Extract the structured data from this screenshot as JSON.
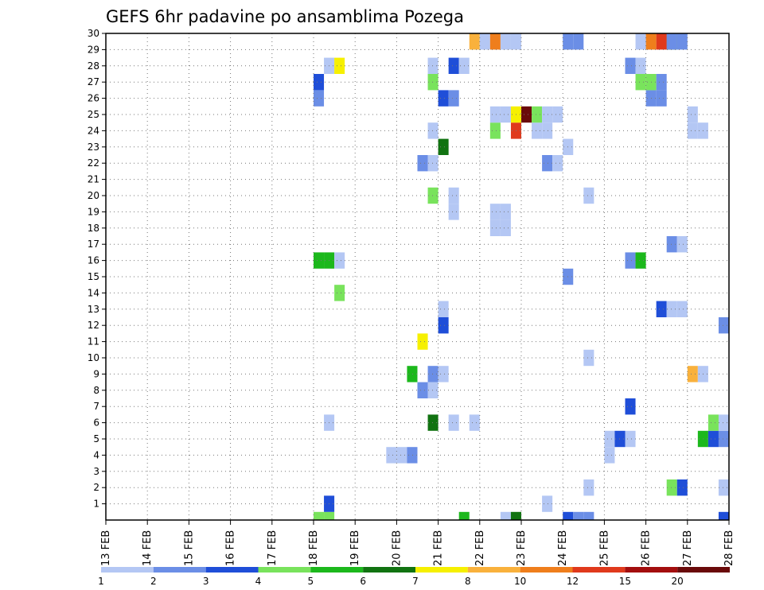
{
  "chart_data": {
    "type": "heatmap",
    "title": "GEFS 6hr padavine po ansamblima Pozega",
    "xlabel": "",
    "ylabel": "",
    "x_ticks": [
      "13 FEB",
      "14 FEB",
      "15 FEB",
      "16 FEB",
      "17 FEB",
      "18 FEB",
      "19 FEB",
      "20 FEB",
      "21 FEB",
      "22 FEB",
      "23 FEB",
      "24 FEB",
      "25 FEB",
      "26 FEB",
      "27 FEB",
      "28 FEB"
    ],
    "y_ticks": [
      "1",
      "2",
      "3",
      "4",
      "5",
      "6",
      "7",
      "8",
      "9",
      "10",
      "11",
      "12",
      "13",
      "14",
      "15",
      "16",
      "17",
      "18",
      "19",
      "20",
      "21",
      "22",
      "23",
      "24",
      "25",
      "26",
      "27",
      "28",
      "29",
      "30"
    ],
    "grid": true,
    "colorbar": {
      "colors": [
        "#b4c7f4",
        "#6b8ee6",
        "#1f4ed8",
        "#79e35c",
        "#1cb81c",
        "#117311",
        "#f6f000",
        "#f9b13c",
        "#ef7e1c",
        "#e0391c",
        "#a30e0e",
        "#6a0a0a"
      ],
      "labels": [
        "1",
        "2",
        "3",
        "4",
        "5",
        "6",
        "7",
        "8",
        "10",
        "12",
        "15",
        "20"
      ]
    },
    "cells": [
      {
        "day": 18.0,
        "member": 0,
        "value": 4
      },
      {
        "day": 18.25,
        "member": 0,
        "value": 4
      },
      {
        "day": 21.5,
        "member": 0,
        "value": 5
      },
      {
        "day": 22.5,
        "member": 0,
        "value": 1
      },
      {
        "day": 22.75,
        "member": 0,
        "value": 6
      },
      {
        "day": 24.0,
        "member": 0,
        "value": 3
      },
      {
        "day": 24.25,
        "member": 0,
        "value": 2
      },
      {
        "day": 24.5,
        "member": 0,
        "value": 2
      },
      {
        "day": 27.75,
        "member": 0,
        "value": 3
      },
      {
        "day": 18.25,
        "member": 1,
        "value": 3
      },
      {
        "day": 23.5,
        "member": 1,
        "value": 1
      },
      {
        "day": 24.5,
        "member": 2,
        "value": 1
      },
      {
        "day": 26.5,
        "member": 2,
        "value": 4
      },
      {
        "day": 26.75,
        "member": 2,
        "value": 3
      },
      {
        "day": 27.75,
        "member": 2,
        "value": 1
      },
      {
        "day": 19.75,
        "member": 4,
        "value": 1
      },
      {
        "day": 20.0,
        "member": 4,
        "value": 1
      },
      {
        "day": 20.25,
        "member": 4,
        "value": 2
      },
      {
        "day": 25.0,
        "member": 4,
        "value": 1
      },
      {
        "day": 25.0,
        "member": 5,
        "value": 1
      },
      {
        "day": 25.25,
        "member": 5,
        "value": 3
      },
      {
        "day": 25.5,
        "member": 5,
        "value": 1
      },
      {
        "day": 27.25,
        "member": 5,
        "value": 5
      },
      {
        "day": 27.5,
        "member": 5,
        "value": 3
      },
      {
        "day": 27.75,
        "member": 5,
        "value": 2
      },
      {
        "day": 18.25,
        "member": 6,
        "value": 1
      },
      {
        "day": 20.75,
        "member": 6,
        "value": 6
      },
      {
        "day": 21.25,
        "member": 6,
        "value": 1
      },
      {
        "day": 21.75,
        "member": 6,
        "value": 1
      },
      {
        "day": 27.5,
        "member": 6,
        "value": 4
      },
      {
        "day": 27.75,
        "member": 6,
        "value": 1
      },
      {
        "day": 25.5,
        "member": 7,
        "value": 3
      },
      {
        "day": 20.5,
        "member": 8,
        "value": 2
      },
      {
        "day": 20.75,
        "member": 8,
        "value": 1
      },
      {
        "day": 20.25,
        "member": 9,
        "value": 5
      },
      {
        "day": 20.75,
        "member": 9,
        "value": 2
      },
      {
        "day": 21.0,
        "member": 9,
        "value": 1
      },
      {
        "day": 27.0,
        "member": 9,
        "value": 8
      },
      {
        "day": 27.25,
        "member": 9,
        "value": 1
      },
      {
        "day": 24.5,
        "member": 10,
        "value": 1
      },
      {
        "day": 20.5,
        "member": 11,
        "value": 7
      },
      {
        "day": 21.0,
        "member": 12,
        "value": 3
      },
      {
        "day": 27.75,
        "member": 12,
        "value": 2
      },
      {
        "day": 21.0,
        "member": 13,
        "value": 1
      },
      {
        "day": 26.25,
        "member": 13,
        "value": 3
      },
      {
        "day": 26.5,
        "member": 13,
        "value": 1
      },
      {
        "day": 26.75,
        "member": 13,
        "value": 1
      },
      {
        "day": 18.5,
        "member": 14,
        "value": 4
      },
      {
        "day": 24.0,
        "member": 15,
        "value": 2
      },
      {
        "day": 18.0,
        "member": 16,
        "value": 5
      },
      {
        "day": 18.25,
        "member": 16,
        "value": 5
      },
      {
        "day": 18.5,
        "member": 16,
        "value": 1
      },
      {
        "day": 25.5,
        "member": 16,
        "value": 2
      },
      {
        "day": 25.75,
        "member": 16,
        "value": 5
      },
      {
        "day": 26.5,
        "member": 17,
        "value": 2
      },
      {
        "day": 26.75,
        "member": 17,
        "value": 1
      },
      {
        "day": 22.25,
        "member": 18,
        "value": 1
      },
      {
        "day": 22.5,
        "member": 18,
        "value": 1
      },
      {
        "day": 22.25,
        "member": 19,
        "value": 1
      },
      {
        "day": 22.5,
        "member": 19,
        "value": 1
      },
      {
        "day": 21.25,
        "member": 19,
        "value": 1
      },
      {
        "day": 20.75,
        "member": 20,
        "value": 4
      },
      {
        "day": 21.25,
        "member": 20,
        "value": 1
      },
      {
        "day": 24.5,
        "member": 20,
        "value": 1
      },
      {
        "day": 20.5,
        "member": 22,
        "value": 2
      },
      {
        "day": 20.75,
        "member": 22,
        "value": 1
      },
      {
        "day": 23.5,
        "member": 22,
        "value": 2
      },
      {
        "day": 23.75,
        "member": 22,
        "value": 1
      },
      {
        "day": 21.0,
        "member": 23,
        "value": 6
      },
      {
        "day": 24.0,
        "member": 23,
        "value": 1
      },
      {
        "day": 20.75,
        "member": 24,
        "value": 1
      },
      {
        "day": 22.25,
        "member": 24,
        "value": 4
      },
      {
        "day": 22.75,
        "member": 24,
        "value": 10
      },
      {
        "day": 23.25,
        "member": 24,
        "value": 1
      },
      {
        "day": 23.5,
        "member": 24,
        "value": 1
      },
      {
        "day": 27.0,
        "member": 24,
        "value": 1
      },
      {
        "day": 27.25,
        "member": 24,
        "value": 1
      },
      {
        "day": 22.25,
        "member": 25,
        "value": 1
      },
      {
        "day": 22.5,
        "member": 25,
        "value": 1
      },
      {
        "day": 22.75,
        "member": 25,
        "value": 7
      },
      {
        "day": 23.0,
        "member": 25,
        "value": 12
      },
      {
        "day": 23.25,
        "member": 25,
        "value": 4
      },
      {
        "day": 23.5,
        "member": 25,
        "value": 1
      },
      {
        "day": 23.75,
        "member": 25,
        "value": 1
      },
      {
        "day": 27.0,
        "member": 25,
        "value": 1
      },
      {
        "day": 18.0,
        "member": 26,
        "value": 2
      },
      {
        "day": 21.0,
        "member": 26,
        "value": 3
      },
      {
        "day": 21.25,
        "member": 26,
        "value": 2
      },
      {
        "day": 26.0,
        "member": 26,
        "value": 2
      },
      {
        "day": 26.25,
        "member": 26,
        "value": 2
      },
      {
        "day": 18.0,
        "member": 27,
        "value": 3
      },
      {
        "day": 20.75,
        "member": 27,
        "value": 4
      },
      {
        "day": 25.75,
        "member": 27,
        "value": 4
      },
      {
        "day": 26.0,
        "member": 27,
        "value": 4
      },
      {
        "day": 26.25,
        "member": 27,
        "value": 2
      },
      {
        "day": 18.25,
        "member": 28,
        "value": 1
      },
      {
        "day": 18.5,
        "member": 28,
        "value": 7
      },
      {
        "day": 20.75,
        "member": 28,
        "value": 1
      },
      {
        "day": 21.25,
        "member": 28,
        "value": 3
      },
      {
        "day": 21.5,
        "member": 28,
        "value": 1
      },
      {
        "day": 25.5,
        "member": 28,
        "value": 2
      },
      {
        "day": 25.75,
        "member": 28,
        "value": 1
      },
      {
        "day": 21.75,
        "member": 30,
        "value": 8
      },
      {
        "day": 22.0,
        "member": 30,
        "value": 1
      },
      {
        "day": 24.0,
        "member": 30,
        "value": 2
      },
      {
        "day": 24.25,
        "member": 30,
        "value": 2
      },
      {
        "day": 25.75,
        "member": 30,
        "value": 1
      },
      {
        "day": 26.5,
        "member": 30,
        "value": 6
      },
      {
        "day": 26.75,
        "member": 30,
        "value": 2
      },
      {
        "day": 22.25,
        "member": 31,
        "value": 9
      },
      {
        "day": 22.5,
        "member": 31,
        "value": 1
      },
      {
        "day": 22.75,
        "member": 31,
        "value": 1
      },
      {
        "day": 26.0,
        "member": 31,
        "value": 9
      },
      {
        "day": 26.25,
        "member": 31,
        "value": 10
      },
      {
        "day": 26.5,
        "member": 31,
        "value": 2
      }
    ]
  }
}
